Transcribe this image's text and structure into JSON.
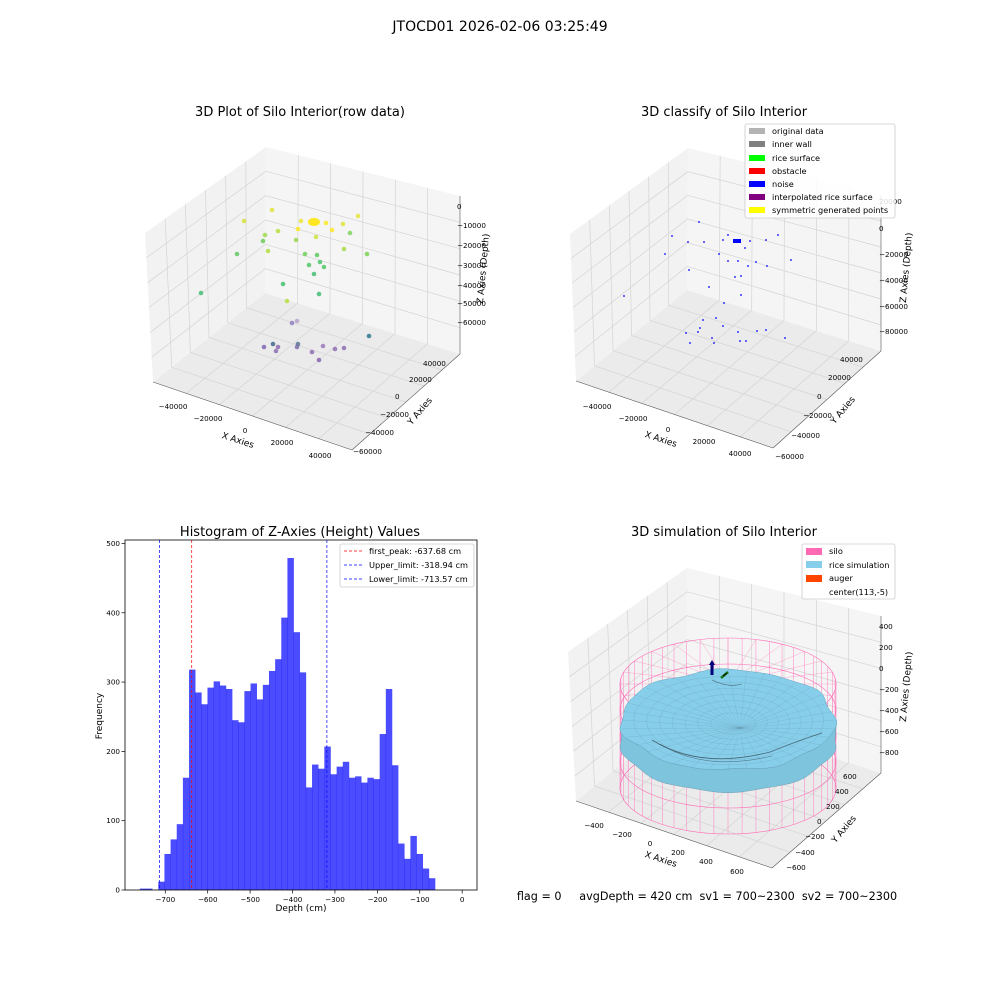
{
  "figure": {
    "suptitle": "JTOCD01 2026-02-06 03:25:49",
    "status_text": "flag = 0     avgDepth = 420 cm  sv1 = 700~2300  sv2 = 700~2300"
  },
  "panels": {
    "raw": {
      "title": "3D Plot of Silo Interior(row data)",
      "xlabel": "X Axies",
      "ylabel": "Y Axies",
      "zlabel": "Z Axies (Depth)",
      "xticks": [
        "−40000",
        "−20000",
        "0",
        "20000",
        "40000"
      ],
      "yticks": [
        "40000",
        "20000",
        "0",
        "−20000",
        "−40000",
        "−60000"
      ],
      "zticks": [
        "0",
        "−10000",
        "−20000",
        "−30000",
        "−40000",
        "−50000",
        "−60000"
      ]
    },
    "classify": {
      "title": "3D classify of Silo Interior",
      "xlabel": "X Axies",
      "ylabel": "Y Axies",
      "zlabel": "Z Axies (Depth)",
      "xticks": [
        "−40000",
        "−20000",
        "0",
        "20000",
        "40000"
      ],
      "yticks": [
        "40000",
        "20000",
        "0",
        "−20000",
        "−40000",
        "−60000"
      ],
      "zticks": [
        "20000",
        "0",
        "−20000",
        "−40000",
        "−60000",
        "−80000"
      ],
      "legend": [
        {
          "label": "original data",
          "color": "#b3b3b3"
        },
        {
          "label": "inner wall",
          "color": "#808080"
        },
        {
          "label": "rice surface",
          "color": "#00ff00"
        },
        {
          "label": "obstacle",
          "color": "#ff0000"
        },
        {
          "label": "noise",
          "color": "#0000ff"
        },
        {
          "label": "interpolated rice surface",
          "color": "#800080"
        },
        {
          "label": "symmetric generated points",
          "color": "#ffff00"
        }
      ]
    },
    "simulation": {
      "title": "3D simulation of Silo Interior",
      "xlabel": "X Axies",
      "ylabel": "Y Axies",
      "zlabel": "Z Axies (Depth)",
      "xticks": [
        "−400",
        "−200",
        "0",
        "200",
        "400",
        "600"
      ],
      "yticks": [
        "600",
        "400",
        "200",
        "0",
        "−200",
        "−400",
        "−600"
      ],
      "zticks": [
        "400",
        "200",
        "0",
        "−200",
        "−400",
        "−600",
        "−800"
      ],
      "legend": [
        {
          "label": "silo",
          "color": "#ff69b4"
        },
        {
          "label": "rice simulation",
          "color": "#87ceeb"
        },
        {
          "label": "auger",
          "color": "#ff4500"
        },
        {
          "label": "center(113,-5)",
          "color": ""
        }
      ]
    }
  },
  "chart_data": [
    {
      "type": "scatter",
      "title": "3D Plot of Silo Interior(row data)",
      "xlabel": "X Axies",
      "ylabel": "Y Axies",
      "zlabel": "Z Axies (Depth)",
      "xlim": [
        -50000,
        50000
      ],
      "ylim": [
        -60000,
        45000
      ],
      "zlim": [
        -65000,
        2000
      ],
      "grid": true
    },
    {
      "type": "scatter",
      "title": "3D classify of Silo Interior",
      "xlabel": "X Axies",
      "ylabel": "Y Axies",
      "zlabel": "Z Axies (Depth)",
      "xlim": [
        -50000,
        50000
      ],
      "ylim": [
        -60000,
        45000
      ],
      "zlim": [
        -85000,
        25000
      ],
      "grid": true,
      "legend_position": "top-right"
    },
    {
      "type": "bar",
      "title": "Histogram of Z-Axies (Height) Values",
      "xlabel": "Depth (cm)",
      "ylabel": "Frequency",
      "xlim": [
        -795,
        35
      ],
      "ylim": [
        0,
        505
      ],
      "xticks": [
        -700,
        -600,
        -500,
        -400,
        -300,
        -200,
        -100,
        0
      ],
      "yticks": [
        0,
        100,
        200,
        300,
        400,
        500
      ],
      "bin_start": -760,
      "bin_width": 14.5,
      "values": [
        2,
        2,
        0,
        12,
        52,
        73,
        95,
        162,
        318,
        285,
        268,
        292,
        301,
        295,
        290,
        245,
        242,
        287,
        298,
        275,
        296,
        316,
        333,
        393,
        479,
        372,
        314,
        148,
        181,
        175,
        207,
        167,
        178,
        185,
        162,
        164,
        155,
        162,
        160,
        225,
        290,
        180,
        67,
        45,
        78,
        52,
        31,
        17
      ],
      "bar_color": "#0000ff",
      "bar_opacity": 0.7,
      "vlines": [
        {
          "label": "first_peak: -637.68 cm",
          "value": -637.68,
          "color": "#ff0000"
        },
        {
          "label": "Upper_limit: -318.94 cm",
          "value": -318.94,
          "color": "#0000ff"
        },
        {
          "label": "Lower_limit: -713.57 cm",
          "value": -713.57,
          "color": "#0000ff"
        }
      ],
      "legend_position": "top-right"
    },
    {
      "type": "surface",
      "title": "3D simulation of Silo Interior",
      "xlabel": "X Axies",
      "ylabel": "Y Axies",
      "zlabel": "Z Axies (Depth)",
      "xlim": [
        -500,
        700
      ],
      "ylim": [
        -700,
        700
      ],
      "zlim": [
        -900,
        450
      ],
      "center": [
        113,
        -5
      ],
      "legend_position": "top-right"
    }
  ]
}
